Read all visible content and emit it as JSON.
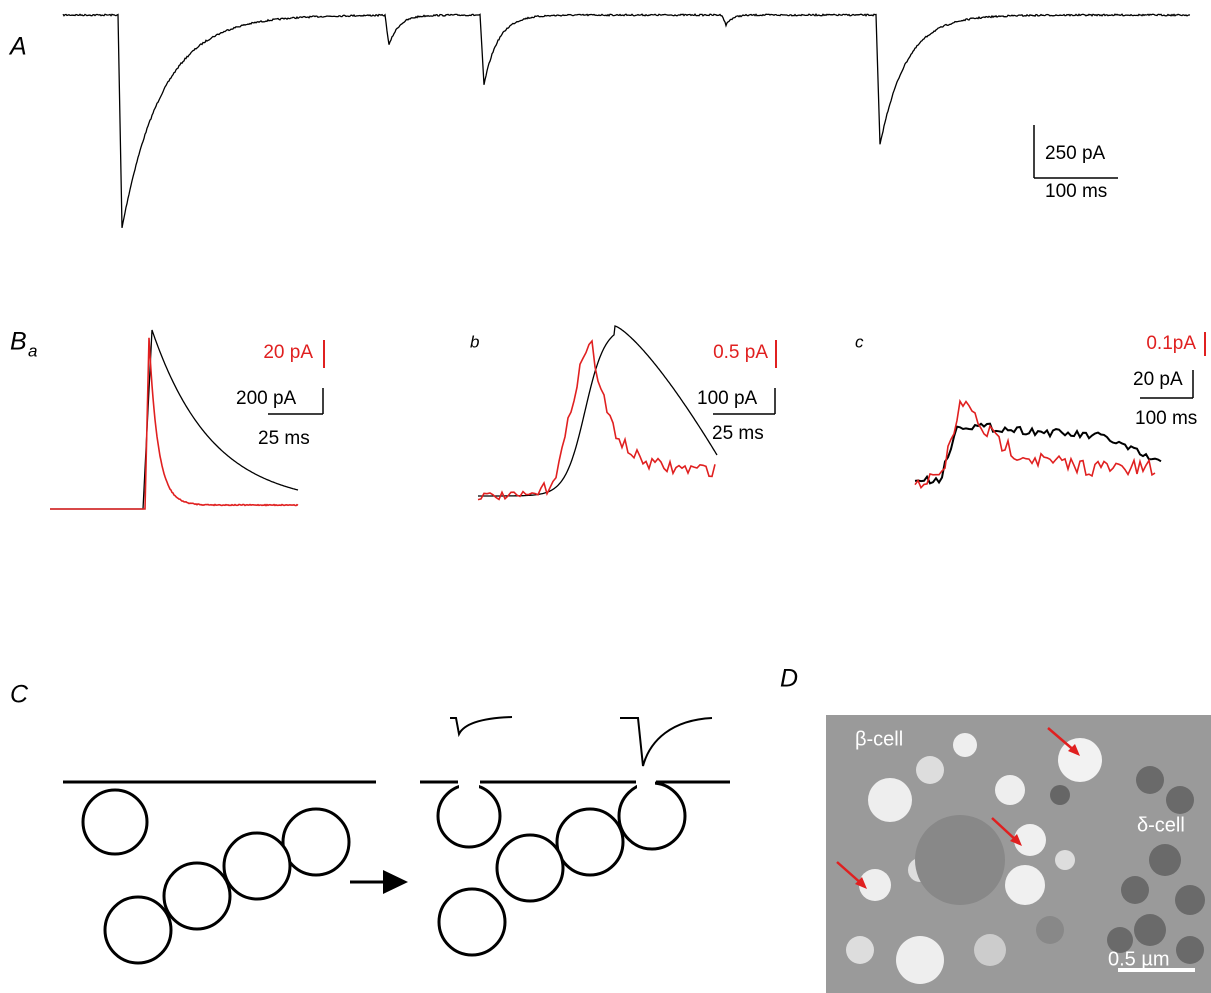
{
  "panel_a": {
    "label": "A",
    "scale_current": "250 pA",
    "scale_time": "100 ms"
  },
  "panel_b": {
    "label": "B",
    "subpanels": [
      {
        "label": "a",
        "scale_red": "20 pA",
        "scale_black": "200 pA",
        "scale_time": "25 ms"
      },
      {
        "label": "b",
        "scale_red": "0.5 pA",
        "scale_black": "100 pA",
        "scale_time": "25 ms"
      },
      {
        "label": "c",
        "scale_red": "0.1pA",
        "scale_black": "20 pA",
        "scale_time": "100 ms"
      }
    ]
  },
  "panel_c": {
    "label": "C"
  },
  "panel_d": {
    "label": "D",
    "cell_labels": [
      "β-cell",
      "δ-cell"
    ],
    "scale_bar": "0.5 µm"
  }
}
